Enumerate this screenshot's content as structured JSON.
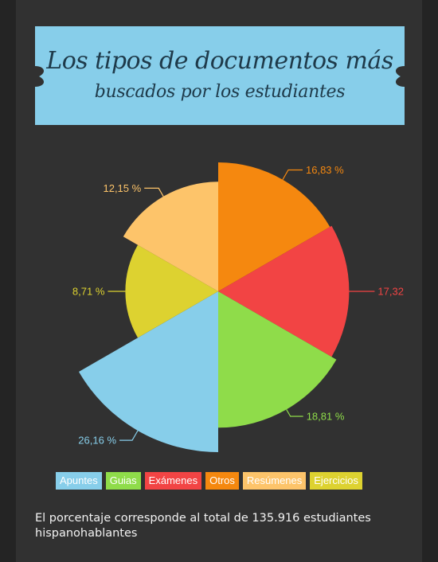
{
  "header": {
    "title_line1": "Los tipos de documentos más",
    "title_line2": "buscados por los estudiantes",
    "banner_color": "#87ceea"
  },
  "chart_data": {
    "type": "pie",
    "variant": "polar-area",
    "start_angle_deg": 0,
    "slices": [
      {
        "name": "Otros",
        "label": "16,83 %",
        "value": 16.83,
        "color": "#f5880f"
      },
      {
        "name": "Exámenes",
        "label": "17,32",
        "value": 17.32,
        "color": "#f24444"
      },
      {
        "name": "Guias",
        "label": "18,81 %",
        "value": 18.81,
        "color": "#8fdc4a"
      },
      {
        "name": "Apuntes",
        "label": "26,16 %",
        "value": 26.16,
        "color": "#87ceea"
      },
      {
        "name": "Ejercicios",
        "label": "8,71 %",
        "value": 8.71,
        "color": "#ddd230"
      },
      {
        "name": "Resúmenes",
        "label": "12,15 %",
        "value": 12.15,
        "color": "#fdc46a"
      }
    ]
  },
  "legend": [
    {
      "label": "Apuntes",
      "color": "#87ceea"
    },
    {
      "label": "Guias",
      "color": "#8fdc4a"
    },
    {
      "label": "Exámenes",
      "color": "#f24444"
    },
    {
      "label": "Otros",
      "color": "#f5880f"
    },
    {
      "label": "Resúmenes",
      "color": "#fdc46a"
    },
    {
      "label": "Ejercicios",
      "color": "#ddd230"
    }
  ],
  "footnote": "El porcentaje corresponde al total de 135.916 estudiantes hispanohablantes"
}
